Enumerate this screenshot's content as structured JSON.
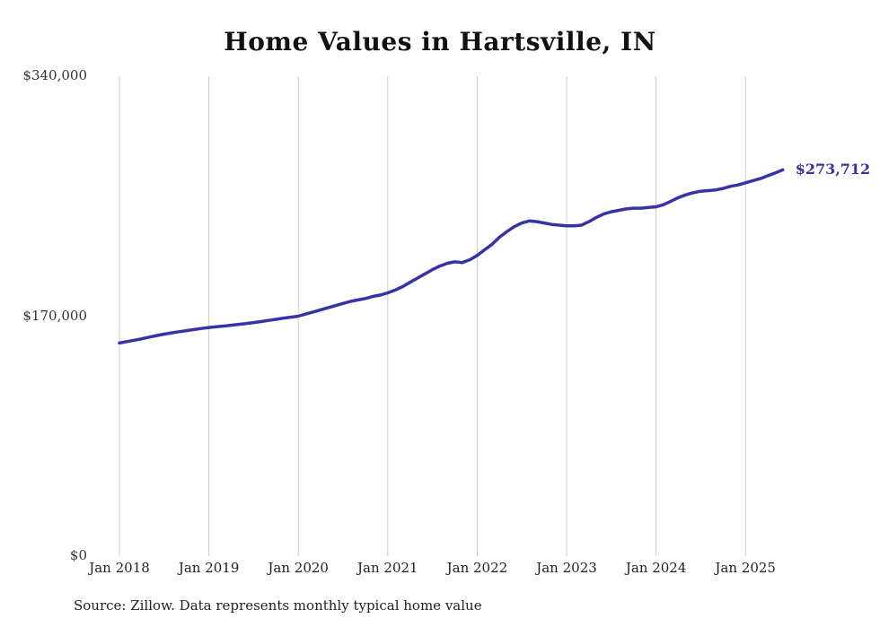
{
  "chart": {
    "title": "Home Values in Hartsville, IN",
    "end_label": "$273,712",
    "source": "Source: Zillow. Data represents monthly typical home value",
    "accent_color": "#3733a6",
    "gridline_color": "#cccccc"
  },
  "chart_data": {
    "type": "line",
    "title": "Home Values in Hartsville, IN",
    "xlabel": "",
    "ylabel": "",
    "ylim": [
      0,
      340000
    ],
    "grid": "vertical-only",
    "legend": "none",
    "x_interval": "monthly",
    "x_start": "Jan 2018",
    "x_end": "Jun 2025",
    "x_ticks": [
      "Jan 2018",
      "Jan 2019",
      "Jan 2020",
      "Jan 2021",
      "Jan 2022",
      "Jan 2023",
      "Jan 2024",
      "Jan 2025"
    ],
    "y_ticks": [
      {
        "label": "$340,000",
        "value": 340000
      },
      {
        "label": "$170,000",
        "value": 170000
      },
      {
        "label": "$0",
        "value": 0
      }
    ],
    "series": [
      {
        "name": "Typical home value",
        "annotation_last_value": "$273,712",
        "values": [
          151000,
          152000,
          153000,
          154000,
          155200,
          156300,
          157300,
          158200,
          159000,
          159800,
          160500,
          161300,
          162000,
          162500,
          163000,
          163600,
          164200,
          164800,
          165500,
          166200,
          167000,
          167800,
          168600,
          169300,
          170000,
          171500,
          173000,
          174500,
          176000,
          177500,
          179000,
          180500,
          181500,
          182500,
          184000,
          185000,
          186500,
          188500,
          191000,
          194000,
          197000,
          200000,
          203000,
          205500,
          207500,
          208500,
          208000,
          210000,
          213000,
          217000,
          221000,
          226000,
          230000,
          233500,
          236000,
          237500,
          237000,
          236000,
          235000,
          234500,
          234000,
          234000,
          234500,
          237000,
          240000,
          242500,
          244000,
          245000,
          246000,
          246500,
          246500,
          247000,
          247500,
          249000,
          251500,
          254000,
          256000,
          257500,
          258500,
          259000,
          259500,
          260500,
          262000,
          263000,
          264500,
          266000,
          267500,
          269500,
          271500,
          273712
        ]
      }
    ]
  }
}
